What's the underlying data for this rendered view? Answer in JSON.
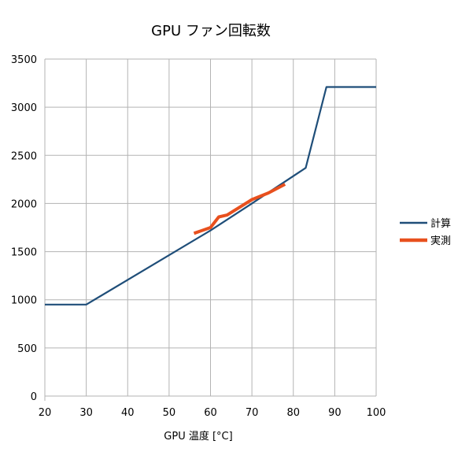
{
  "chart_data": {
    "type": "line",
    "title": "GPU ファン回転数",
    "xlabel": "GPU 温度 [°C]",
    "ylabel": "",
    "xlim": [
      20,
      100
    ],
    "ylim": [
      0,
      3500
    ],
    "xticks": [
      20,
      30,
      40,
      50,
      60,
      70,
      80,
      90,
      100
    ],
    "yticks": [
      0,
      500,
      1000,
      1500,
      2000,
      2500,
      3000,
      3500
    ],
    "grid": true,
    "legend_position": "right",
    "series": [
      {
        "name": "計算",
        "color": "#1f4e79",
        "points": [
          [
            20,
            950
          ],
          [
            30,
            950
          ],
          [
            60,
            1720
          ],
          [
            70,
            2000
          ],
          [
            83,
            2370
          ],
          [
            88,
            3210
          ],
          [
            100,
            3210
          ]
        ]
      },
      {
        "name": "実測",
        "color": "#e8501e",
        "points": [
          [
            56,
            1690
          ],
          [
            60,
            1750
          ],
          [
            62,
            1860
          ],
          [
            64,
            1880
          ],
          [
            70,
            2040
          ],
          [
            74,
            2110
          ],
          [
            78,
            2200
          ]
        ]
      }
    ]
  }
}
